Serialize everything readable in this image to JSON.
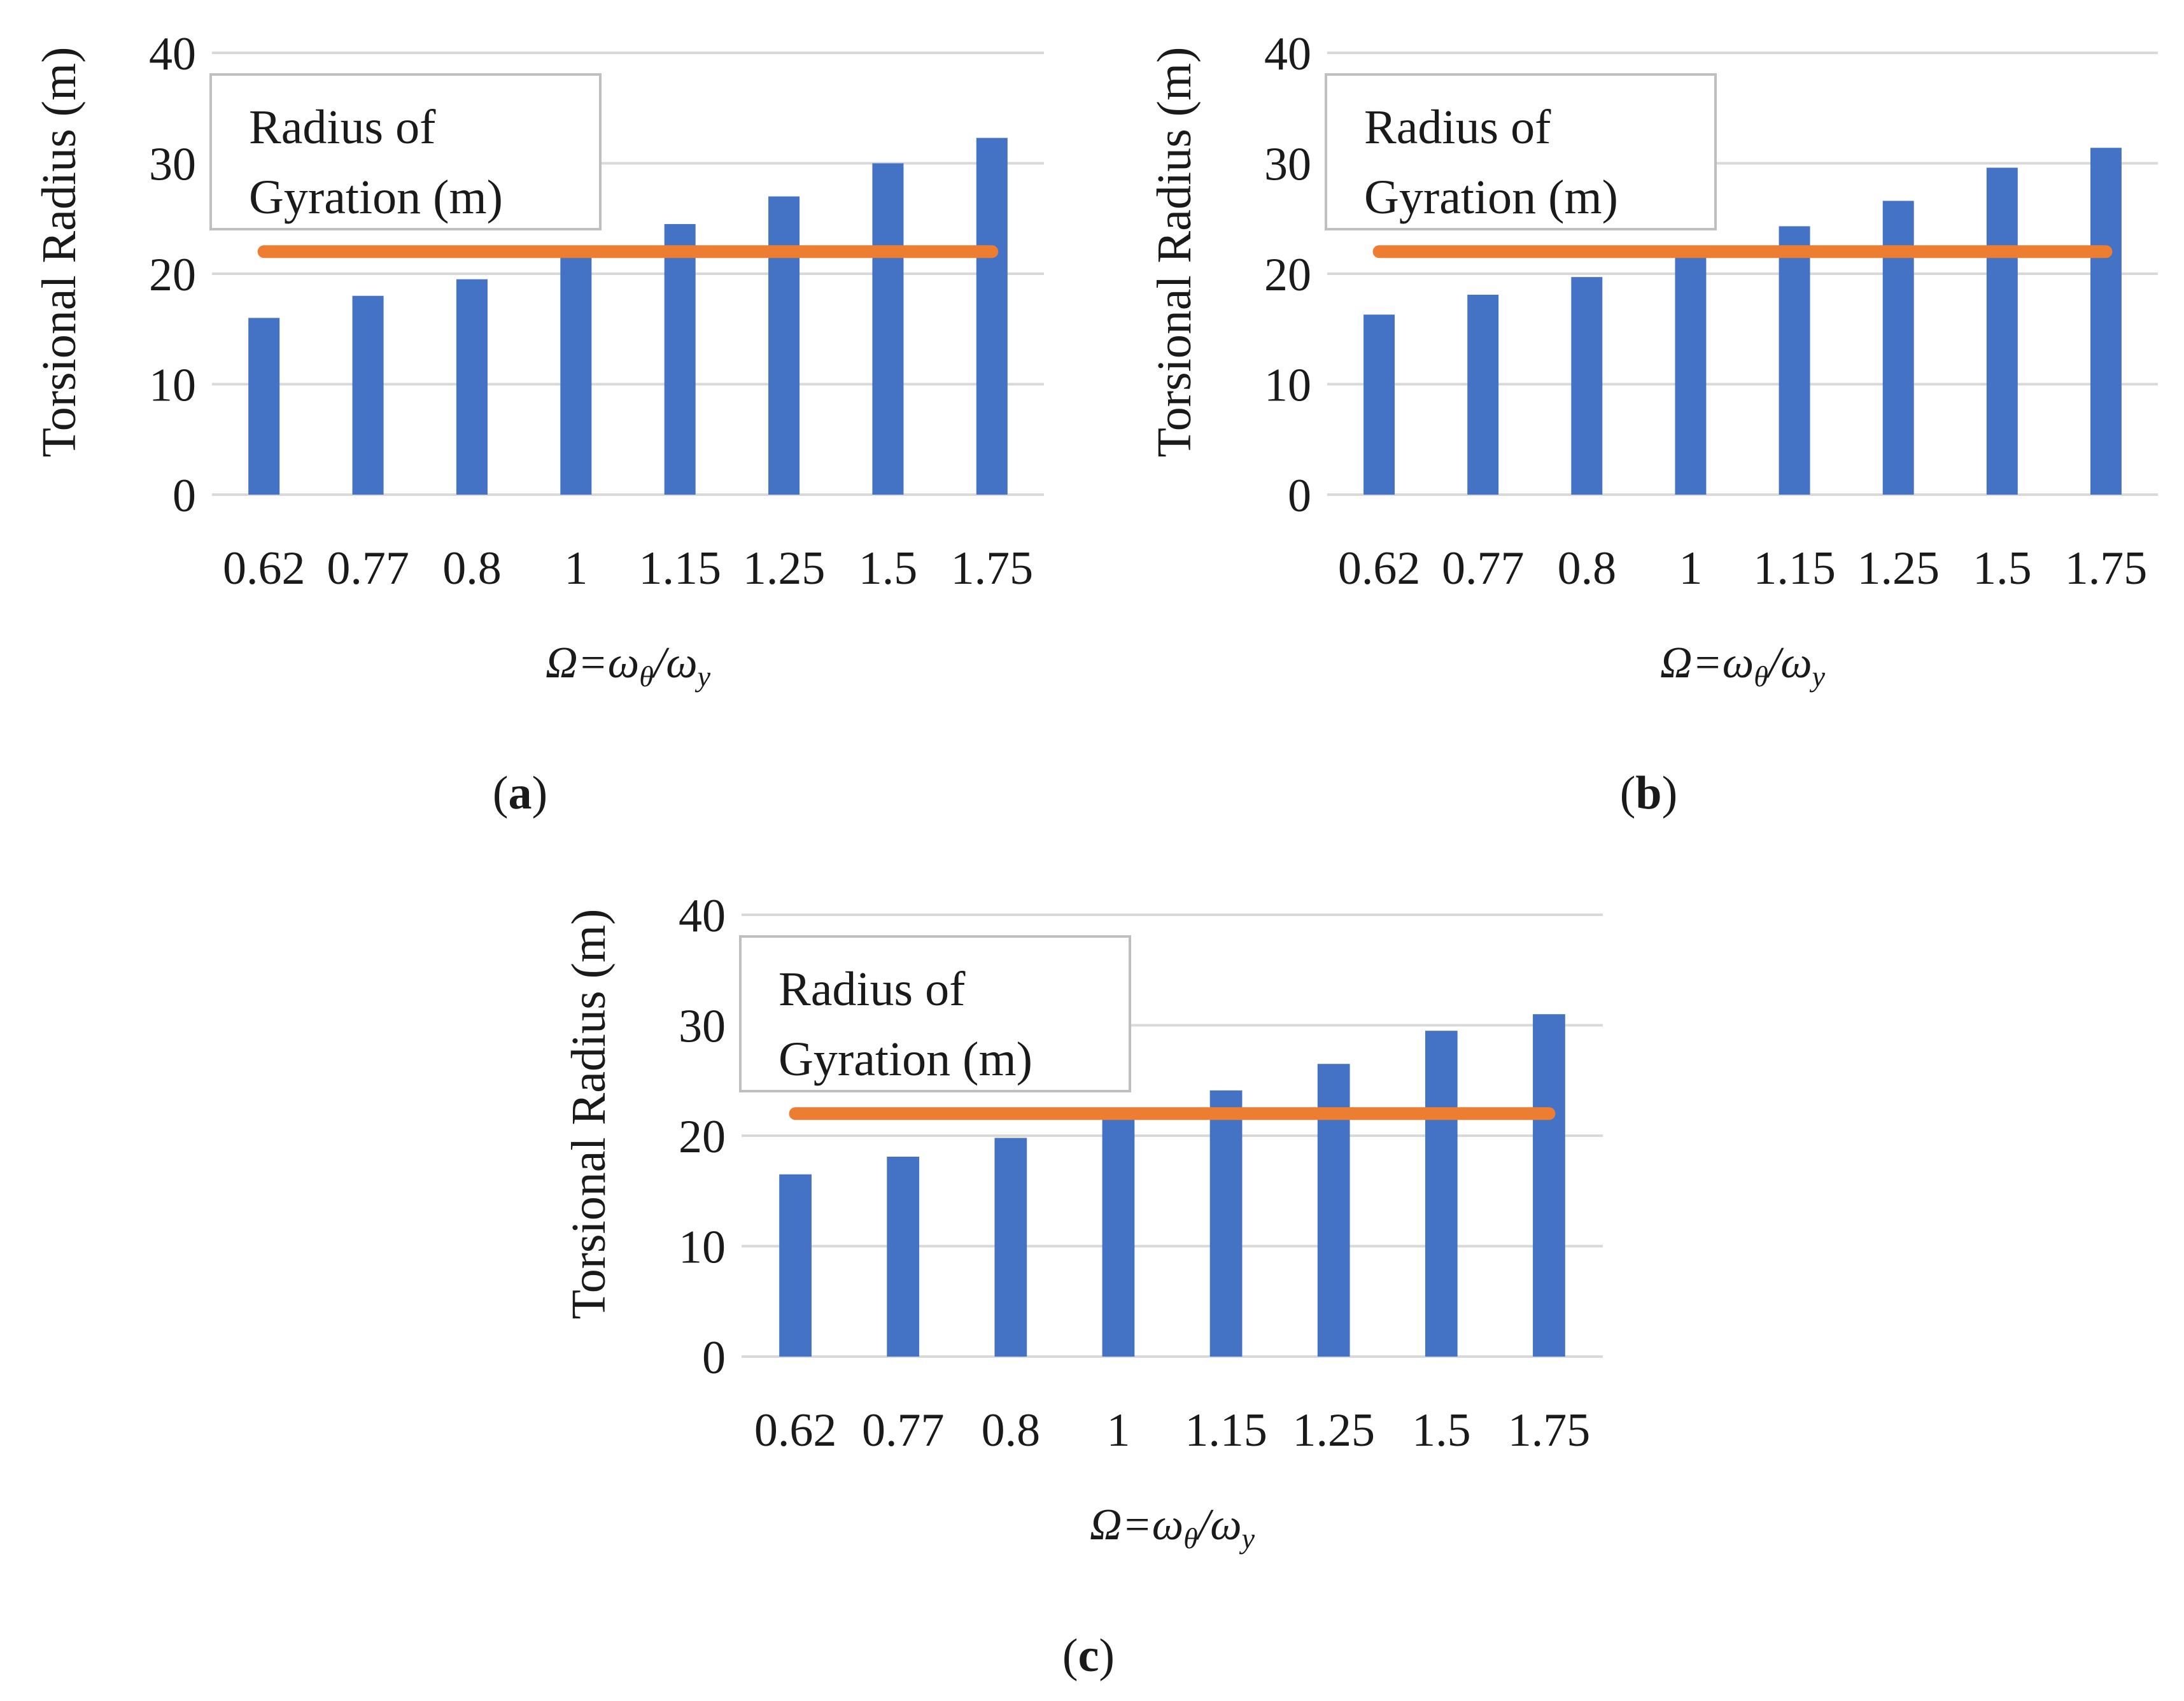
{
  "figure": {
    "panels": [
      {
        "letter": "a",
        "open": "(",
        "close": ")"
      },
      {
        "letter": "b",
        "open": "(",
        "close": ")"
      },
      {
        "letter": "c",
        "open": "(",
        "close": ")"
      }
    ]
  },
  "colors": {
    "bar": "#4472C4",
    "line": "#ED7D31",
    "grid": "#d9d9d9",
    "text": "#1a1a1a",
    "legend_border": "#bfbfbf"
  },
  "chart_data": [
    {
      "type": "bar",
      "panel": "a",
      "categories": [
        "0.62",
        "0.77",
        "0.8",
        "1",
        "1.15",
        "1.25",
        "1.5",
        "1.75"
      ],
      "series": [
        {
          "name": "Torsional Radius (m)",
          "type": "bar",
          "values": [
            16,
            18,
            19.5,
            22,
            24.5,
            27,
            30,
            32.3
          ]
        },
        {
          "name": "Radius of Gyration (m)",
          "type": "line",
          "values": [
            22,
            22,
            22,
            22,
            22,
            22,
            22,
            22
          ]
        }
      ],
      "ylabel": "Torsional Radius (m)",
      "xlabel": {
        "main": "Ω=ω",
        "sub1": "θ",
        "mid": "/ω",
        "sub2": "y"
      },
      "legend": {
        "line1": "Radius of",
        "line2": "Gyration (m)"
      },
      "yticks": [
        "0",
        "10",
        "20",
        "30",
        "40"
      ],
      "ylim": [
        0,
        40
      ],
      "grid": true
    },
    {
      "type": "bar",
      "panel": "b",
      "categories": [
        "0.62",
        "0.77",
        "0.8",
        "1",
        "1.15",
        "1.25",
        "1.5",
        "1.75"
      ],
      "series": [
        {
          "name": "Torsional Radius (m)",
          "type": "bar",
          "values": [
            16.3,
            18.1,
            19.7,
            22,
            24.3,
            26.6,
            29.6,
            31.4
          ]
        },
        {
          "name": "Radius of Gyration (m)",
          "type": "line",
          "values": [
            22,
            22,
            22,
            22,
            22,
            22,
            22,
            22
          ]
        }
      ],
      "ylabel": "Torsional Radius (m)",
      "xlabel": {
        "main": "Ω=ω",
        "sub1": "θ",
        "mid": "/ω",
        "sub2": "y"
      },
      "legend": {
        "line1": "Radius of",
        "line2": "Gyration (m)"
      },
      "yticks": [
        "0",
        "10",
        "20",
        "30",
        "40"
      ],
      "ylim": [
        0,
        40
      ],
      "grid": true
    },
    {
      "type": "bar",
      "panel": "c",
      "categories": [
        "0.62",
        "0.77",
        "0.8",
        "1",
        "1.15",
        "1.25",
        "1.5",
        "1.75"
      ],
      "series": [
        {
          "name": "Torsional Radius (m)",
          "type": "bar",
          "values": [
            16.5,
            18.1,
            19.8,
            22,
            24.1,
            26.5,
            29.5,
            31
          ]
        },
        {
          "name": "Radius of Gyration (m)",
          "type": "line",
          "values": [
            22,
            22,
            22,
            22,
            22,
            22,
            22,
            22
          ]
        }
      ],
      "ylabel": "Torsional Radius (m)",
      "xlabel": {
        "main": "Ω=ω",
        "sub1": "θ",
        "mid": "/ω",
        "sub2": "y"
      },
      "legend": {
        "line1": "Radius of",
        "line2": "Gyration (m)"
      },
      "yticks": [
        "0",
        "10",
        "20",
        "30",
        "40"
      ],
      "ylim": [
        0,
        40
      ],
      "grid": true
    }
  ]
}
